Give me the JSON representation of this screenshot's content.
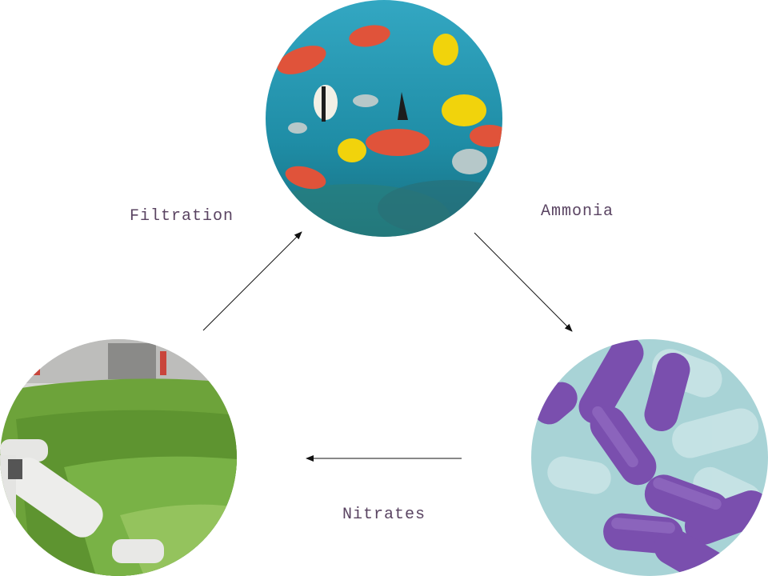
{
  "nodes": {
    "fish": {
      "image": "fish-photo"
    },
    "bacteria": {
      "image": "bacteria-photo"
    },
    "plants": {
      "image": "plants-photo"
    }
  },
  "edges": {
    "fish_to_bacteria": {
      "label": "Ammonia"
    },
    "bacteria_to_plants": {
      "label": "Nitrates"
    },
    "plants_to_fish": {
      "label": "Filtration"
    }
  },
  "colors": {
    "label_text": "#5a4462",
    "arrow": "#111111"
  }
}
